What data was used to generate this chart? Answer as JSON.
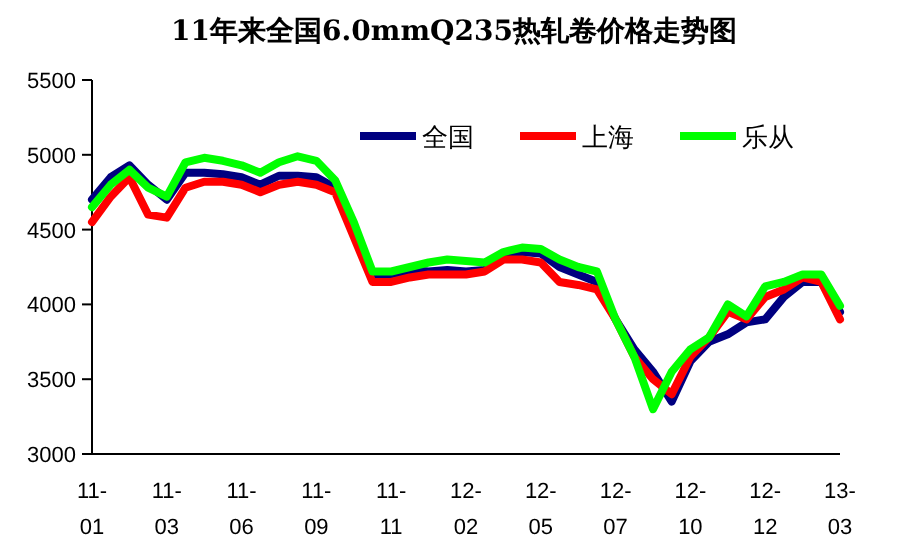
{
  "chart_data": {
    "type": "line",
    "title": "11年来全国6.0mmQ235热轧卷价格走势图",
    "categories": [
      "11-01",
      null,
      null,
      null,
      "11-03",
      null,
      null,
      null,
      "11-06",
      null,
      null,
      null,
      "11-09",
      null,
      null,
      null,
      "11-11",
      null,
      null,
      null,
      "12-02",
      null,
      null,
      null,
      "12-05",
      null,
      null,
      null,
      "12-07",
      null,
      null,
      null,
      "12-10",
      null,
      null,
      null,
      "12-12",
      null,
      null,
      null,
      "13-03"
    ],
    "series": [
      {
        "name": "全国",
        "color": "#000080",
        "values": [
          4700,
          4850,
          4930,
          4800,
          4700,
          4880,
          4880,
          4870,
          4850,
          4800,
          4860,
          4860,
          4850,
          4780,
          4500,
          4200,
          4200,
          4230,
          4220,
          4230,
          4220,
          4230,
          4320,
          4350,
          4340,
          4250,
          4200,
          4150,
          3900,
          3700,
          3550,
          3350,
          3620,
          3750,
          3800,
          3880,
          3900,
          4050,
          4150,
          4150,
          3950
        ]
      },
      {
        "name": "上海",
        "color": "#ff0000",
        "values": [
          4550,
          4720,
          4850,
          4600,
          4580,
          4780,
          4820,
          4820,
          4800,
          4750,
          4800,
          4820,
          4800,
          4750,
          4450,
          4150,
          4150,
          4180,
          4200,
          4200,
          4200,
          4220,
          4300,
          4300,
          4280,
          4150,
          4130,
          4100,
          3900,
          3650,
          3500,
          3400,
          3650,
          3780,
          3950,
          3900,
          4050,
          4100,
          4180,
          4150,
          3900
        ]
      },
      {
        "name": "乐从",
        "color": "#00ff00",
        "values": [
          4650,
          4800,
          4900,
          4780,
          4720,
          4950,
          4980,
          4960,
          4930,
          4880,
          4950,
          4990,
          4960,
          4830,
          4550,
          4220,
          4220,
          4250,
          4280,
          4300,
          4290,
          4280,
          4350,
          4380,
          4370,
          4300,
          4250,
          4220,
          3900,
          3650,
          3300,
          3550,
          3700,
          3780,
          4000,
          3920,
          4120,
          4150,
          4200,
          4200,
          3990
        ]
      }
    ],
    "ylim": [
      3000,
      5500
    ],
    "yticks": [
      3000,
      3500,
      4000,
      4500,
      5000,
      5500
    ],
    "legend": "top right",
    "marker": "none",
    "line_style": "solid"
  }
}
